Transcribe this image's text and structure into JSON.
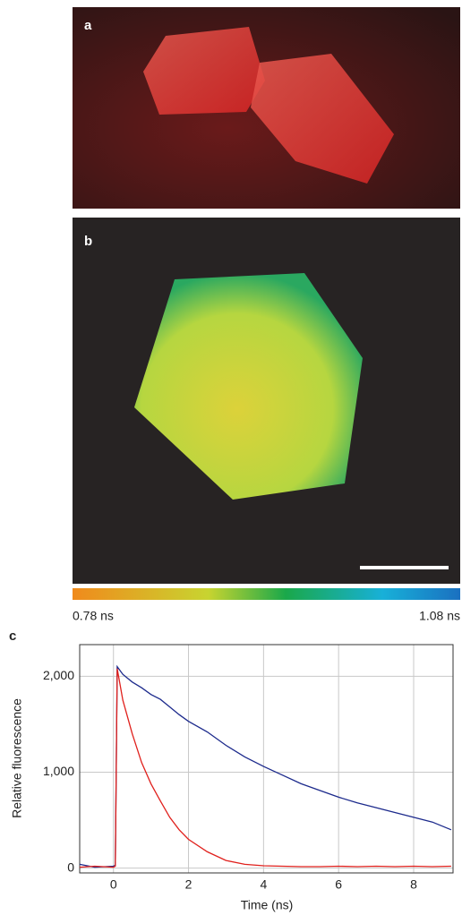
{
  "panels": {
    "a": "a",
    "b": "b",
    "colorbar": {
      "min_label": "0.78 ns",
      "max_label": "1.08 ns"
    }
  },
  "chart_data": {
    "type": "line",
    "panel_label": "c",
    "x_label": "Time (ns)",
    "y_label": "Relative fluorescence",
    "x": [
      -0.9,
      -0.5,
      0,
      0.05,
      0.1,
      0.25,
      0.5,
      0.75,
      1,
      1.25,
      1.5,
      1.75,
      2,
      2.5,
      3,
      3.5,
      4,
      4.5,
      5,
      5.5,
      6,
      6.5,
      7,
      7.5,
      8,
      8.5,
      9
    ],
    "series": [
      {
        "color": "#1c2a8c",
        "values": [
          40,
          10,
          20,
          30,
          2100,
          2020,
          1940,
          1880,
          1810,
          1760,
          1680,
          1600,
          1530,
          1420,
          1280,
          1160,
          1060,
          970,
          880,
          810,
          740,
          680,
          630,
          580,
          530,
          480,
          400
        ]
      },
      {
        "color": "#e0201c",
        "values": [
          10,
          20,
          10,
          20,
          2080,
          1750,
          1400,
          1100,
          880,
          700,
          530,
          400,
          300,
          170,
          80,
          40,
          25,
          20,
          15,
          15,
          20,
          15,
          20,
          15,
          20,
          15,
          20
        ]
      }
    ],
    "xlim": [
      -0.9,
      9.05
    ],
    "ylim": [
      -50,
      2330
    ],
    "xticks": [
      0,
      2,
      4,
      6,
      8
    ],
    "yticks": [
      0,
      {
        "value": 1000,
        "label": "1,000"
      },
      {
        "value": 2000,
        "label": "2,000"
      }
    ],
    "grid": true
  }
}
